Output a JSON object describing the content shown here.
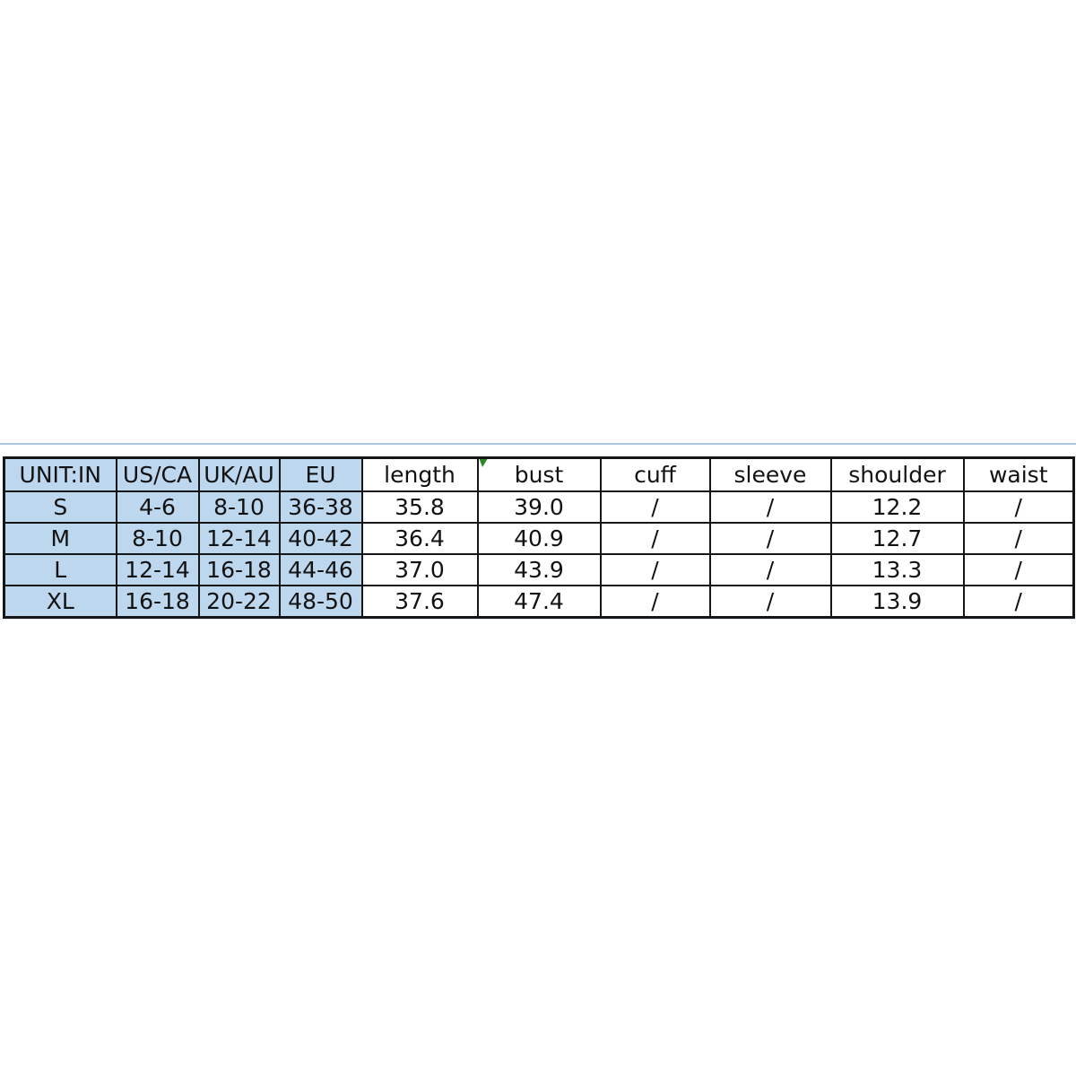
{
  "chart_data": {
    "type": "table",
    "title": "",
    "unit_note": "UNIT:IN",
    "columns": [
      "UNIT:IN",
      "US/CA",
      "UK/AU",
      "EU",
      "length",
      "bust",
      "cuff",
      "sleeve",
      "shoulder",
      "waist"
    ],
    "rows": [
      [
        "S",
        "4-6",
        "8-10",
        "36-38",
        "35.8",
        "39.0",
        "/",
        "/",
        "12.2",
        "/"
      ],
      [
        "M",
        "8-10",
        "12-14",
        "40-42",
        "36.4",
        "40.9",
        "/",
        "/",
        "12.7",
        "/"
      ],
      [
        "L",
        "12-14",
        "16-18",
        "44-46",
        "37.0",
        "43.9",
        "/",
        "/",
        "13.3",
        "/"
      ],
      [
        "XL",
        "16-18",
        "20-22",
        "48-50",
        "37.6",
        "47.4",
        "/",
        "/",
        "13.9",
        "/"
      ]
    ],
    "size_labels": [
      "S",
      "M",
      "L",
      "XL"
    ],
    "missing_value_symbol": "/",
    "layout_hints": {
      "highlighted_columns": [
        "UNIT:IN",
        "US/CA",
        "UK/AU",
        "EU"
      ],
      "error_indicator_on": "bust"
    },
    "colors": {
      "size_columns_bg": "#bdd7ee",
      "measure_columns_bg": "#ffffff",
      "grid_border": "#161616",
      "error_indicator_green": "#2a8a2a",
      "top_rule": "#aec6db",
      "bottom_rule": "#dce6ef"
    }
  }
}
